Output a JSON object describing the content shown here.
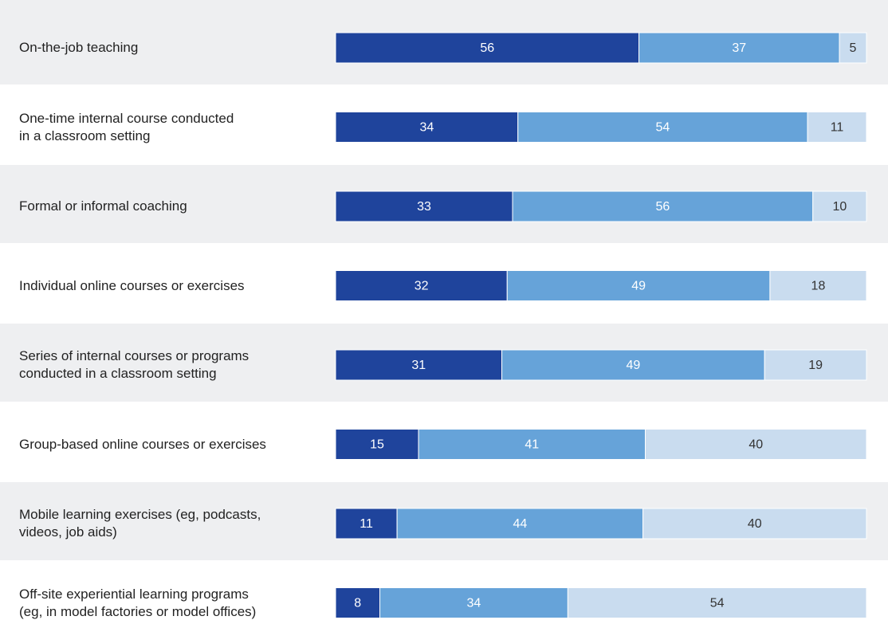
{
  "chart_data": {
    "type": "bar",
    "orientation": "horizontal",
    "stacking": "normalized",
    "categories": [
      "On-the-job teaching",
      "One-time internal course conducted\nin a classroom setting",
      "Formal or informal coaching",
      "Individual online courses or exercises",
      "Series of internal courses or programs\nconducted in a classroom setting",
      "Group-based online courses or exercises",
      "Mobile learning exercises (eg, podcasts,\nvideos, job aids)",
      "Off-site experiential learning programs\n(eg, in model factories or model offices)"
    ],
    "series": [
      {
        "color": "#1f449c",
        "label_color": "#ffffff",
        "values": [
          56,
          34,
          33,
          32,
          31,
          15,
          11,
          8
        ]
      },
      {
        "color": "#66a3d9",
        "label_color": "#ffffff",
        "values": [
          37,
          54,
          56,
          49,
          49,
          41,
          44,
          34
        ]
      },
      {
        "color": "#c9dcef",
        "label_color": "#333333",
        "values": [
          5,
          11,
          10,
          18,
          19,
          40,
          40,
          54
        ]
      }
    ],
    "row_background": "#eeeff1"
  }
}
